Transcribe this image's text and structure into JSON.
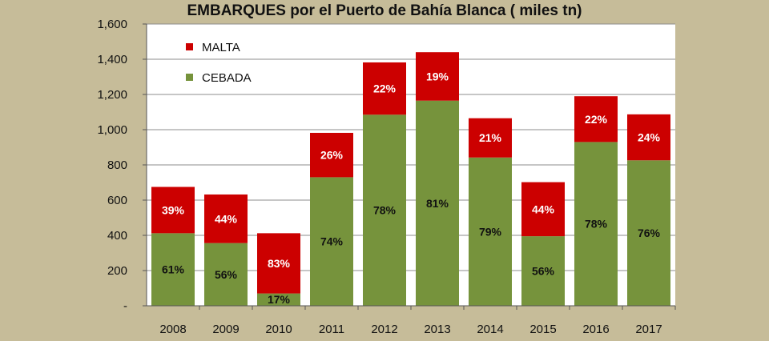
{
  "chart_data": {
    "type": "bar",
    "stacked": true,
    "title": "EMBARQUES por el Puerto de Bahía Blanca ( miles tn)",
    "xlabel": "",
    "ylabel": "",
    "categories": [
      "2008",
      "2009",
      "2010",
      "2011",
      "2012",
      "2013",
      "2014",
      "2015",
      "2016",
      "2017"
    ],
    "series": [
      {
        "name": "CEBADA",
        "color": "#76933c",
        "values": [
          412,
          356,
          70,
          730,
          1085,
          1165,
          842,
          395,
          930,
          826
        ],
        "labels": [
          "61%",
          "56%",
          "17%",
          "74%",
          "78%",
          "81%",
          "79%",
          "56%",
          "78%",
          "76%"
        ]
      },
      {
        "name": "MALTA",
        "color": "#cc0000",
        "values": [
          263,
          276,
          342,
          252,
          297,
          275,
          223,
          307,
          260,
          261
        ],
        "labels": [
          "39%",
          "44%",
          "83%",
          "26%",
          "22%",
          "19%",
          "21%",
          "44%",
          "22%",
          "24%"
        ]
      }
    ],
    "yticks": [
      "-",
      "200",
      "400",
      "600",
      "800",
      "1,000",
      "1,200",
      "1,400",
      "1,600"
    ],
    "ylim": [
      0,
      1600
    ],
    "legend": "top-left",
    "grid": true
  }
}
